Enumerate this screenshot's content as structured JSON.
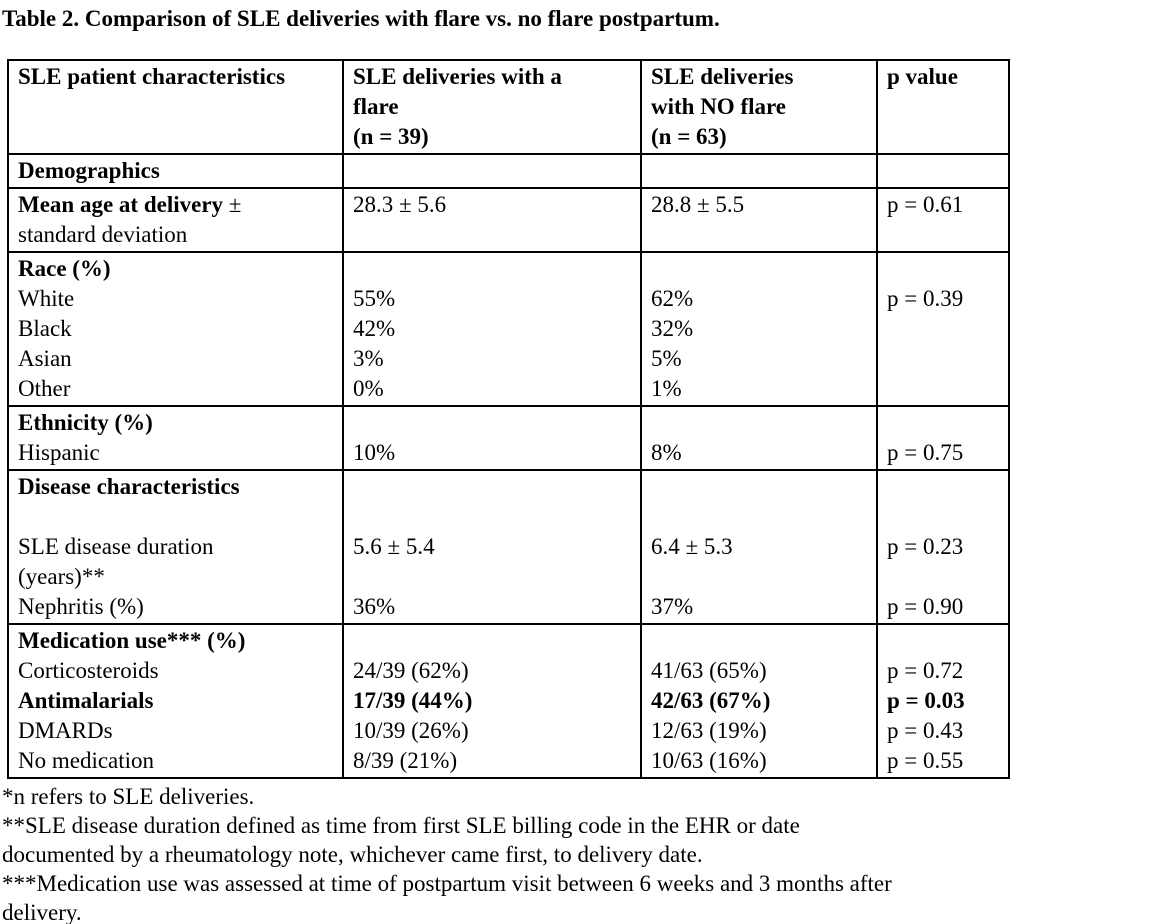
{
  "title": "Table 2. Comparison of SLE deliveries with flare vs. no flare postpartum.",
  "table": {
    "header": [
      {
        "name": "sle-patient-characteristics",
        "lines": [
          "SLE patient characteristics"
        ]
      },
      {
        "name": "sle-deliveries-with-flare",
        "lines": [
          "SLE deliveries with a",
          "flare",
          "(n = 39)"
        ]
      },
      {
        "name": "sle-deliveries-no-flare",
        "lines": [
          "SLE deliveries",
          "with NO flare",
          "(n = 63)"
        ]
      },
      {
        "name": "p-value",
        "lines": [
          "p value"
        ]
      }
    ],
    "sections": [
      {
        "name": "demographics",
        "rows": [
          [
            {
              "t": "Demographics",
              "b": true
            },
            null,
            null,
            null
          ]
        ]
      },
      {
        "name": "mean-age",
        "rows": [
          [
            {
              "segs": [
                {
                  "t": "Mean age at delivery",
                  "b": true
                },
                {
                  "t": " ±",
                  "b": false
                }
              ]
            },
            {
              "t": "28.3 ± 5.6"
            },
            {
              "t": "28.8 ± 5.5"
            },
            {
              "t": "p = 0.61"
            }
          ],
          [
            {
              "t": "standard deviation"
            },
            null,
            null,
            null
          ]
        ]
      },
      {
        "name": "race",
        "rows": [
          [
            {
              "t": "Race (%)",
              "b": true
            },
            null,
            null,
            null
          ],
          [
            {
              "t": "White"
            },
            {
              "t": "55%"
            },
            {
              "t": "62%"
            },
            {
              "t": "p = 0.39"
            }
          ],
          [
            {
              "t": "Black"
            },
            {
              "t": "42%"
            },
            {
              "t": "32%"
            },
            null
          ],
          [
            {
              "t": "Asian"
            },
            {
              "t": "3%"
            },
            {
              "t": "5%"
            },
            null
          ],
          [
            {
              "t": "Other"
            },
            {
              "t": "0%"
            },
            {
              "t": "1%"
            },
            null
          ]
        ]
      },
      {
        "name": "ethnicity",
        "rows": [
          [
            {
              "t": "Ethnicity (%)",
              "b": true
            },
            null,
            null,
            null
          ],
          [
            {
              "t": "Hispanic"
            },
            {
              "t": "10%"
            },
            {
              "t": "8%"
            },
            {
              "t": "p = 0.75"
            }
          ]
        ]
      },
      {
        "name": "disease-characteristics",
        "rows": [
          [
            {
              "t": "Disease characteristics",
              "b": true
            },
            null,
            null,
            null
          ],
          [
            null,
            null,
            null,
            null
          ],
          [
            {
              "t": "SLE disease duration"
            },
            {
              "t": "5.6 ± 5.4"
            },
            {
              "t": "6.4 ± 5.3"
            },
            {
              "t": "p = 0.23"
            }
          ],
          [
            {
              "t": "(years)**"
            },
            null,
            null,
            null
          ],
          [
            {
              "t": "Nephritis (%)"
            },
            {
              "t": "36%"
            },
            {
              "t": "37%"
            },
            {
              "t": "p = 0.90"
            }
          ]
        ]
      },
      {
        "name": "medication-use",
        "rows": [
          [
            {
              "t": "Medication use*** (%)",
              "b": true
            },
            null,
            null,
            null
          ],
          [
            {
              "t": "Corticosteroids"
            },
            {
              "t": "24/39 (62%)"
            },
            {
              "t": "41/63 (65%)"
            },
            {
              "t": "p = 0.72"
            }
          ],
          [
            {
              "t": "Antimalarials",
              "b": true
            },
            {
              "t": "17/39 (44%)",
              "b": true
            },
            {
              "t": "42/63 (67%)",
              "b": true
            },
            {
              "t": "p = 0.03",
              "b": true
            }
          ],
          [
            {
              "t": "DMARDs"
            },
            {
              "t": "10/39 (26%)"
            },
            {
              "t": "12/63 (19%)"
            },
            {
              "t": "p = 0.43"
            }
          ],
          [
            {
              "t": "No medication"
            },
            {
              "t": "8/39 (21%)"
            },
            {
              "t": "10/63 (16%)"
            },
            {
              "t": "p = 0.55"
            }
          ]
        ]
      }
    ]
  },
  "footnotes": [
    "*n refers to SLE deliveries.",
    "**SLE disease duration defined as time from first SLE billing code in the EHR or date",
    "documented by a rheumatology note, whichever came first, to delivery date.",
    "***Medication use was assessed at time of postpartum visit between 6 weeks and 3 months after",
    "delivery."
  ]
}
